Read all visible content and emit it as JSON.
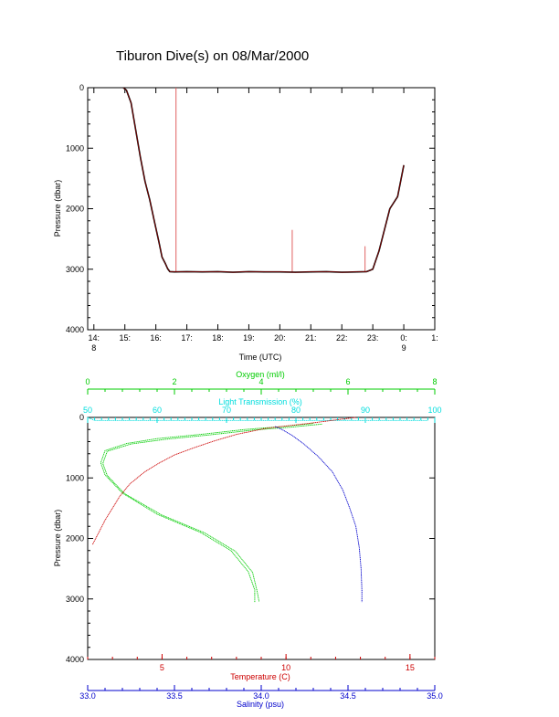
{
  "title": "Tiburon Dive(s) on 08/Mar/2000",
  "colors": {
    "axis": "#000000",
    "depth_trace": "#000000",
    "depth_trace_inner": "#cc0000",
    "spikes": "#e06060",
    "oxygen": "#00cc00",
    "light": "#00dddd",
    "temperature": "#cc0000",
    "salinity": "#0000cc"
  },
  "chart_data": [
    {
      "type": "line",
      "name": "dive-profile",
      "xlabel": "Time (UTC)",
      "ylabel": "Pressure (dbar)",
      "x_tick_labels": [
        "14:",
        "15:",
        "16:",
        "17:",
        "18:",
        "19:",
        "20:",
        "21:",
        "22:",
        "23:",
        "0:",
        "1:"
      ],
      "x_tick_values": [
        14,
        15,
        16,
        17,
        18,
        19,
        20,
        21,
        22,
        23,
        24,
        25
      ],
      "x_date_labels": [
        {
          "x": 14,
          "text": "8"
        },
        {
          "x": 24,
          "text": "9"
        }
      ],
      "xlim": [
        13.8,
        25.0
      ],
      "ylim": [
        0,
        4000
      ],
      "y_reversed": true,
      "y_tick_labels": [
        "0",
        "1000",
        "2000",
        "3000",
        "4000"
      ],
      "y_tick_values": [
        0,
        1000,
        2000,
        3000,
        4000
      ],
      "series": [
        {
          "x": [
            14.95,
            15.05,
            15.2,
            15.35,
            15.5,
            15.65,
            15.8,
            15.95,
            16.1,
            16.2,
            16.3,
            16.38,
            16.45,
            16.6,
            17.0,
            17.5,
            18.0,
            18.5,
            19.0,
            19.5,
            20.0,
            20.5,
            21.0,
            21.5,
            22.0,
            22.5,
            22.8,
            22.9,
            23.0,
            23.2,
            23.4,
            23.55,
            23.8,
            24.0
          ],
          "y": [
            0,
            40,
            250,
            700,
            1150,
            1550,
            1850,
            2200,
            2550,
            2800,
            2900,
            2990,
            3040,
            3045,
            3040,
            3045,
            3040,
            3050,
            3040,
            3045,
            3045,
            3050,
            3045,
            3040,
            3050,
            3045,
            3040,
            3020,
            3000,
            2700,
            2300,
            2000,
            1800,
            1280
          ]
        }
      ],
      "spikes": [
        {
          "x": 16.65,
          "y_top": 0,
          "y_bottom": 3040
        },
        {
          "x": 20.4,
          "y_top": 2350,
          "y_bottom": 3040
        },
        {
          "x": 22.75,
          "y_top": 2620,
          "y_bottom": 3040
        }
      ]
    },
    {
      "type": "line",
      "name": "cast-profiles",
      "ylabel": "Pressure (dbar)",
      "ylim": [
        0,
        4000
      ],
      "y_reversed": true,
      "y_tick_labels": [
        "0",
        "1000",
        "2000",
        "3000",
        "4000"
      ],
      "y_tick_values": [
        0,
        1000,
        2000,
        3000,
        4000
      ],
      "axes": [
        {
          "key": "oxygen",
          "label": "Oxygen (ml/l)",
          "position": "top-outer",
          "range": [
            0,
            8
          ],
          "ticks": [
            0,
            2,
            4,
            6,
            8
          ],
          "tick_labels": [
            "0",
            "2",
            "4",
            "6",
            "8"
          ]
        },
        {
          "key": "light",
          "label": "Light Transmission (%)",
          "position": "top-inner",
          "range": [
            50,
            100
          ],
          "ticks": [
            50,
            60,
            70,
            80,
            90,
            100
          ],
          "tick_labels": [
            "50",
            "60",
            "70",
            "80",
            "90",
            "100"
          ]
        },
        {
          "key": "temperature",
          "label": "Temperature (C)",
          "position": "bottom-inner",
          "range": [
            2.0,
            16.0
          ],
          "ticks": [
            5,
            10,
            15
          ],
          "tick_labels": [
            "5",
            "10",
            "15"
          ]
        },
        {
          "key": "salinity",
          "label": "Salinity (psu)",
          "position": "bottom-outer",
          "range": [
            33.0,
            35.0
          ],
          "ticks": [
            33.0,
            33.5,
            34.0,
            34.5,
            35.0
          ],
          "tick_labels": [
            "33.0",
            "33.5",
            "34.0",
            "34.5",
            "35.0"
          ]
        }
      ],
      "series": [
        {
          "axis": "light",
          "x": [
            50,
            51,
            55,
            60,
            65,
            70,
            75,
            80,
            85,
            88,
            90,
            95,
            99
          ],
          "y": [
            0,
            50,
            50,
            50,
            50,
            50,
            50,
            50,
            50,
            50,
            50,
            50,
            50
          ]
        },
        {
          "axis": "oxygen",
          "x": [
            5.2,
            4.5,
            3.6,
            2.6,
            1.6,
            0.9,
            0.4,
            0.3,
            0.4,
            0.8,
            1.6,
            2.6,
            3.3,
            3.7,
            3.85,
            3.85
          ],
          "y": [
            100,
            150,
            200,
            280,
            350,
            430,
            550,
            750,
            950,
            1250,
            1600,
            1900,
            2200,
            2550,
            2850,
            3050
          ]
        },
        {
          "axis": "oxygen",
          "x": [
            5.4,
            4.7,
            3.8,
            2.8,
            1.8,
            1.0,
            0.45,
            0.35,
            0.45,
            0.85,
            1.7,
            2.7,
            3.4,
            3.8,
            3.9,
            3.95
          ],
          "y": [
            110,
            160,
            210,
            290,
            360,
            440,
            560,
            760,
            960,
            1260,
            1610,
            1910,
            2210,
            2560,
            2860,
            3040
          ]
        },
        {
          "axis": "temperature",
          "x": [
            12.8,
            10.9,
            9.2,
            8.0,
            7.1,
            6.3,
            5.5,
            4.9,
            4.3,
            3.7,
            3.3,
            3.0,
            2.7,
            2.2
          ],
          "y": [
            0,
            100,
            180,
            280,
            390,
            500,
            620,
            750,
            900,
            1100,
            1300,
            1500,
            1700,
            2100
          ]
        },
        {
          "axis": "salinity",
          "x": [
            34.08,
            34.12,
            34.18,
            34.25,
            34.33,
            34.41,
            34.47,
            34.51,
            34.545,
            34.565,
            34.575,
            34.58,
            34.58
          ],
          "y": [
            150,
            200,
            300,
            450,
            650,
            900,
            1200,
            1500,
            1800,
            2150,
            2500,
            2850,
            3050
          ]
        }
      ]
    }
  ]
}
